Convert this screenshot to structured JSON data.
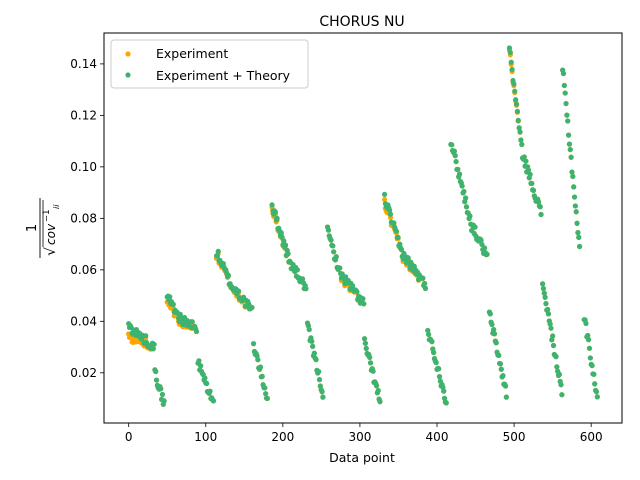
{
  "chart_data": {
    "type": "scatter",
    "title": "CHORUS NU",
    "xlabel": "Data point",
    "ylabel": "1 / √(cov^-1_ii)",
    "ylabel_parts": {
      "numerator": "1",
      "base": "cov",
      "superscript": "−1",
      "subscript": "ii"
    },
    "xlim": [
      -32,
      640
    ],
    "ylim": [
      0.0005,
      0.152
    ],
    "xticks": [
      0,
      100,
      200,
      300,
      400,
      500,
      600
    ],
    "yticks": [
      0.02,
      0.04,
      0.06,
      0.08,
      0.1,
      0.12,
      0.14
    ],
    "ytick_labels": [
      "0.02",
      "0.04",
      "0.06",
      "0.08",
      "0.10",
      "0.12",
      "0.14"
    ],
    "legend_position": "upper-left",
    "grid": false,
    "series": [
      {
        "name": "Experiment",
        "color": "#ffa500",
        "marker": "circle",
        "segments": [
          {
            "x0": 0,
            "x1": 20,
            "y0": 0.034,
            "y1": 0.032
          },
          {
            "x0": 21,
            "x1": 33,
            "y0": 0.032,
            "y1": 0.03
          },
          {
            "x0": 34,
            "x1": 46,
            "y0": 0.02,
            "y1": 0.008
          },
          {
            "x0": 50,
            "x1": 67,
            "y0": 0.048,
            "y1": 0.04
          },
          {
            "x0": 68,
            "x1": 88,
            "y0": 0.04,
            "y1": 0.037
          },
          {
            "x0": 90,
            "x1": 110,
            "y0": 0.024,
            "y1": 0.008
          },
          {
            "x0": 114,
            "x1": 136,
            "y0": 0.066,
            "y1": 0.052
          },
          {
            "x0": 137,
            "x1": 160,
            "y0": 0.052,
            "y1": 0.044
          },
          {
            "x0": 162,
            "x1": 180,
            "y0": 0.031,
            "y1": 0.01
          },
          {
            "x0": 186,
            "x1": 210,
            "y0": 0.084,
            "y1": 0.062
          },
          {
            "x0": 211,
            "x1": 230,
            "y0": 0.062,
            "y1": 0.053
          },
          {
            "x0": 232,
            "x1": 252,
            "y0": 0.038,
            "y1": 0.012
          },
          {
            "x0": 258,
            "x1": 275,
            "y0": 0.075,
            "y1": 0.058
          },
          {
            "x0": 276,
            "x1": 305,
            "y0": 0.057,
            "y1": 0.047
          },
          {
            "x0": 306,
            "x1": 326,
            "y0": 0.032,
            "y1": 0.009
          },
          {
            "x0": 332,
            "x1": 355,
            "y0": 0.086,
            "y1": 0.066
          },
          {
            "x0": 356,
            "x1": 385,
            "y0": 0.065,
            "y1": 0.054
          },
          {
            "x0": 388,
            "x1": 412,
            "y0": 0.037,
            "y1": 0.009
          },
          {
            "x0": 418,
            "x1": 445,
            "y0": 0.11,
            "y1": 0.077
          },
          {
            "x0": 446,
            "x1": 465,
            "y0": 0.077,
            "y1": 0.065
          },
          {
            "x0": 468,
            "x1": 490,
            "y0": 0.043,
            "y1": 0.012
          },
          {
            "x0": 494,
            "x1": 510,
            "y0": 0.145,
            "y1": 0.107
          },
          {
            "x0": 511,
            "x1": 535,
            "y0": 0.105,
            "y1": 0.082
          },
          {
            "x0": 537,
            "x1": 562,
            "y0": 0.055,
            "y1": 0.012
          },
          {
            "x0": 563,
            "x1": 585,
            "y0": 0.138,
            "y1": 0.068
          },
          {
            "x0": 591,
            "x1": 608,
            "y0": 0.042,
            "y1": 0.01
          }
        ]
      },
      {
        "name": "Experiment + Theory",
        "color": "#3cb371",
        "marker": "circle",
        "segments": [
          {
            "x0": 0,
            "x1": 20,
            "y0": 0.038,
            "y1": 0.033
          },
          {
            "x0": 21,
            "x1": 33,
            "y0": 0.033,
            "y1": 0.03
          },
          {
            "x0": 34,
            "x1": 46,
            "y0": 0.02,
            "y1": 0.008
          },
          {
            "x0": 50,
            "x1": 67,
            "y0": 0.05,
            "y1": 0.041
          },
          {
            "x0": 68,
            "x1": 88,
            "y0": 0.041,
            "y1": 0.037
          },
          {
            "x0": 90,
            "x1": 110,
            "y0": 0.024,
            "y1": 0.008
          },
          {
            "x0": 114,
            "x1": 136,
            "y0": 0.067,
            "y1": 0.052
          },
          {
            "x0": 137,
            "x1": 160,
            "y0": 0.053,
            "y1": 0.044
          },
          {
            "x0": 162,
            "x1": 180,
            "y0": 0.031,
            "y1": 0.01
          },
          {
            "x0": 186,
            "x1": 210,
            "y0": 0.085,
            "y1": 0.062
          },
          {
            "x0": 211,
            "x1": 230,
            "y0": 0.062,
            "y1": 0.053
          },
          {
            "x0": 232,
            "x1": 252,
            "y0": 0.038,
            "y1": 0.012
          },
          {
            "x0": 258,
            "x1": 275,
            "y0": 0.075,
            "y1": 0.058
          },
          {
            "x0": 276,
            "x1": 305,
            "y0": 0.058,
            "y1": 0.047
          },
          {
            "x0": 306,
            "x1": 326,
            "y0": 0.032,
            "y1": 0.009
          },
          {
            "x0": 332,
            "x1": 355,
            "y0": 0.088,
            "y1": 0.066
          },
          {
            "x0": 356,
            "x1": 385,
            "y0": 0.066,
            "y1": 0.054
          },
          {
            "x0": 388,
            "x1": 412,
            "y0": 0.037,
            "y1": 0.009
          },
          {
            "x0": 418,
            "x1": 445,
            "y0": 0.11,
            "y1": 0.077
          },
          {
            "x0": 446,
            "x1": 465,
            "y0": 0.077,
            "y1": 0.065
          },
          {
            "x0": 468,
            "x1": 490,
            "y0": 0.043,
            "y1": 0.012
          },
          {
            "x0": 494,
            "x1": 510,
            "y0": 0.146,
            "y1": 0.107
          },
          {
            "x0": 511,
            "x1": 535,
            "y0": 0.105,
            "y1": 0.082
          },
          {
            "x0": 537,
            "x1": 562,
            "y0": 0.055,
            "y1": 0.012
          },
          {
            "x0": 563,
            "x1": 585,
            "y0": 0.138,
            "y1": 0.068
          },
          {
            "x0": 591,
            "x1": 608,
            "y0": 0.042,
            "y1": 0.01
          }
        ]
      }
    ]
  }
}
